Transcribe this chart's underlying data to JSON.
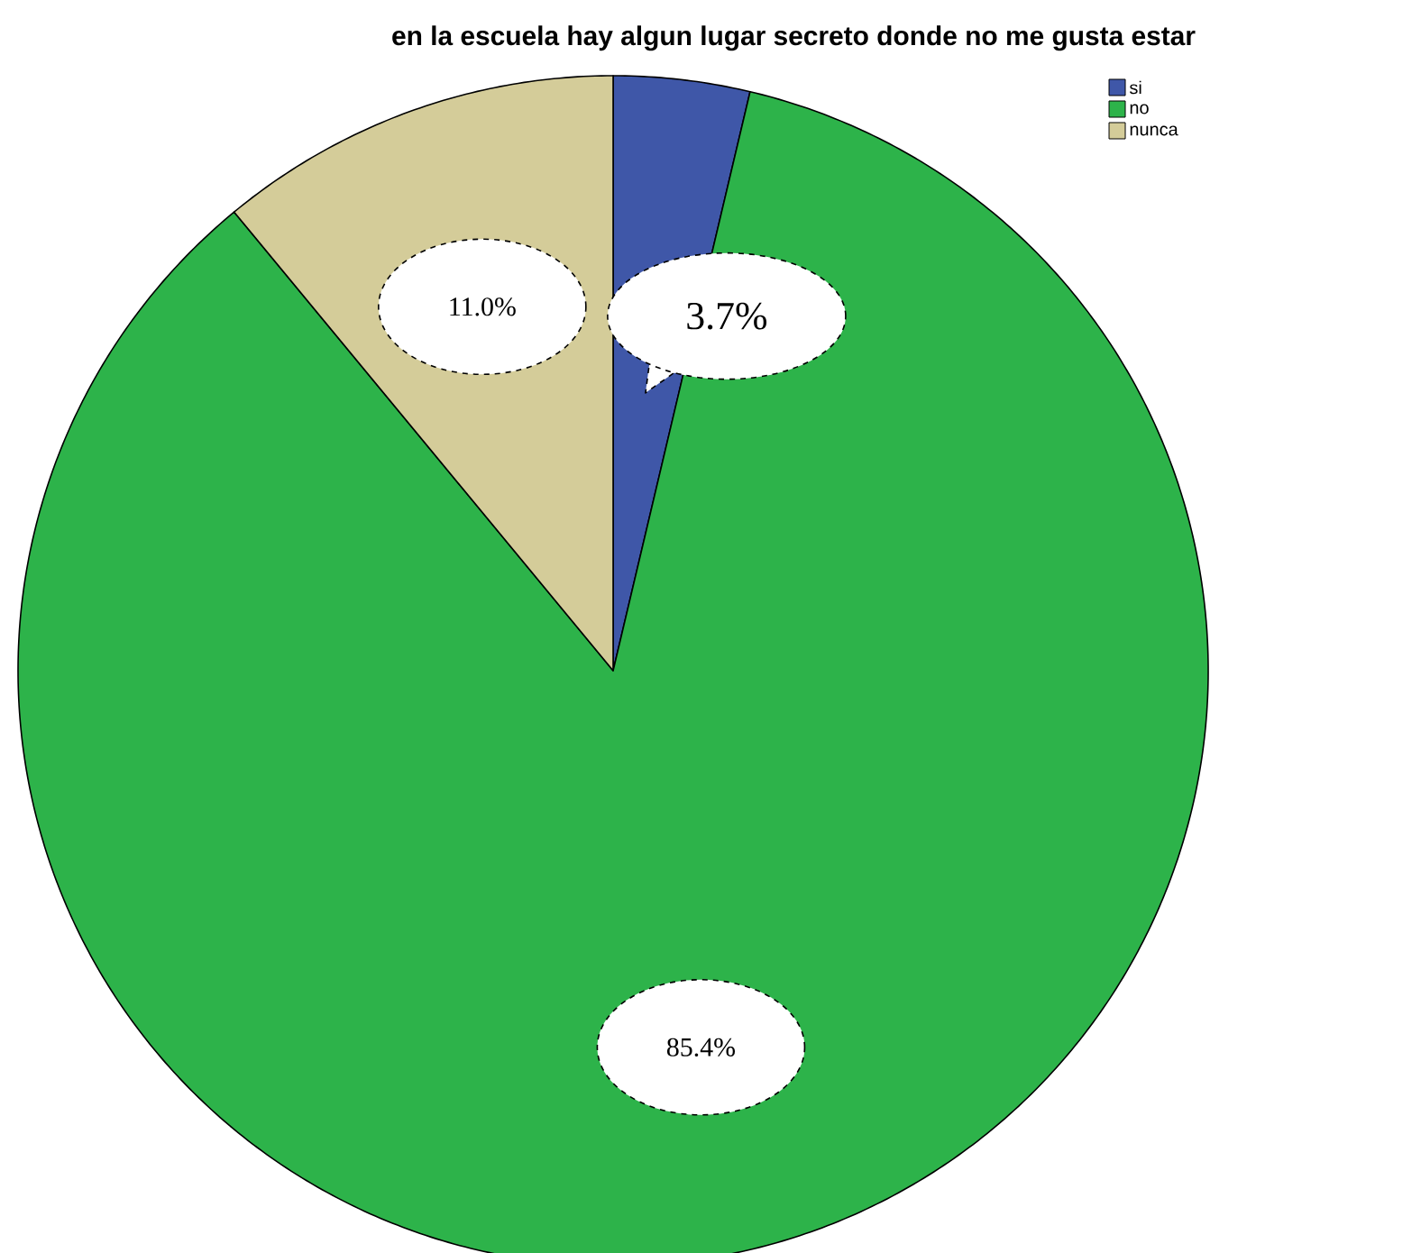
{
  "chart_data": {
    "type": "pie",
    "title": "en la escuela hay algun lugar secreto donde no me gusta estar",
    "categories": [
      "si",
      "no",
      "nunca"
    ],
    "values": [
      3.7,
      85.4,
      11.0
    ],
    "colors": [
      "#3f57a8",
      "#2db34a",
      "#d4cc99"
    ],
    "value_labels": [
      "3.7%",
      "85.4%",
      "11.0%"
    ],
    "legend": "top right"
  }
}
